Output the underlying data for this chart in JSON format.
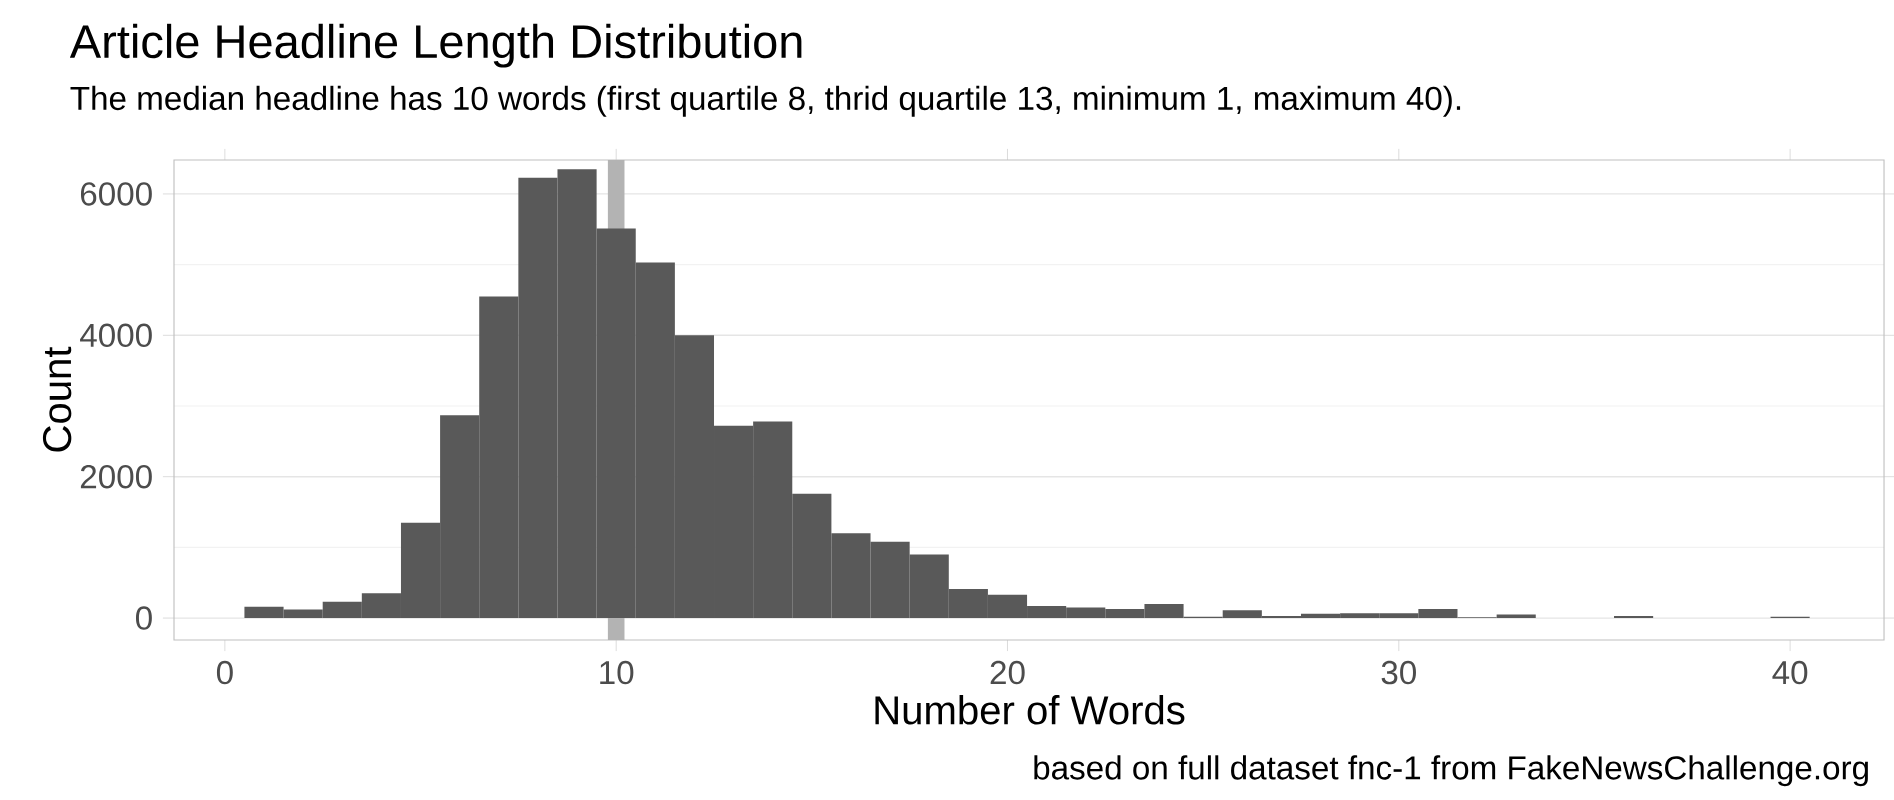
{
  "chart_data": {
    "type": "histogram",
    "title": "Article Headline Length Distribution",
    "subtitle": "The median headline has 10 words (first quartile 8, thrid quartile 13, minimum 1, maximum 40).",
    "xlabel": "Number of Words",
    "ylabel": "Count",
    "annotations": [
      "based on full dataset fnc-1 from FakeNewsChallenge.org"
    ],
    "bins": [
      0.5,
      1.5,
      2.5,
      3.5,
      4.5,
      5.5,
      6.5,
      7.5,
      8.5,
      9.5,
      10.5,
      11.5,
      12.5,
      13.5,
      14.5,
      15.5,
      16.5,
      17.5,
      18.5,
      19.5,
      20.5,
      21.5,
      22.5,
      23.5,
      24.5,
      25.5,
      26.5,
      27.5,
      28.5,
      29.5,
      30.5,
      31.5,
      32.5,
      33.5,
      34.5,
      35.5,
      36.5,
      37.5,
      38.5,
      39.5,
      40.5
    ],
    "values": [
      160,
      120,
      230,
      350,
      1350,
      2870,
      4550,
      6230,
      6350,
      5510,
      5030,
      4000,
      2720,
      2780,
      1760,
      1200,
      1080,
      900,
      410,
      330,
      170,
      150,
      130,
      200,
      20,
      110,
      30,
      60,
      70,
      70,
      130,
      10,
      50,
      0,
      0,
      30,
      0,
      0,
      0,
      20
    ],
    "color": "#595959",
    "xlim": [
      -1.3,
      42.4
    ],
    "ylim": [
      -310,
      6480
    ],
    "xticks": [
      0,
      10,
      20,
      30,
      40
    ],
    "yticks": [
      0,
      2000,
      4000,
      6000
    ],
    "grid": "y",
    "ref_lines": [
      {
        "axis": "x",
        "value": 10,
        "color": "#b3b3b3"
      }
    ]
  }
}
